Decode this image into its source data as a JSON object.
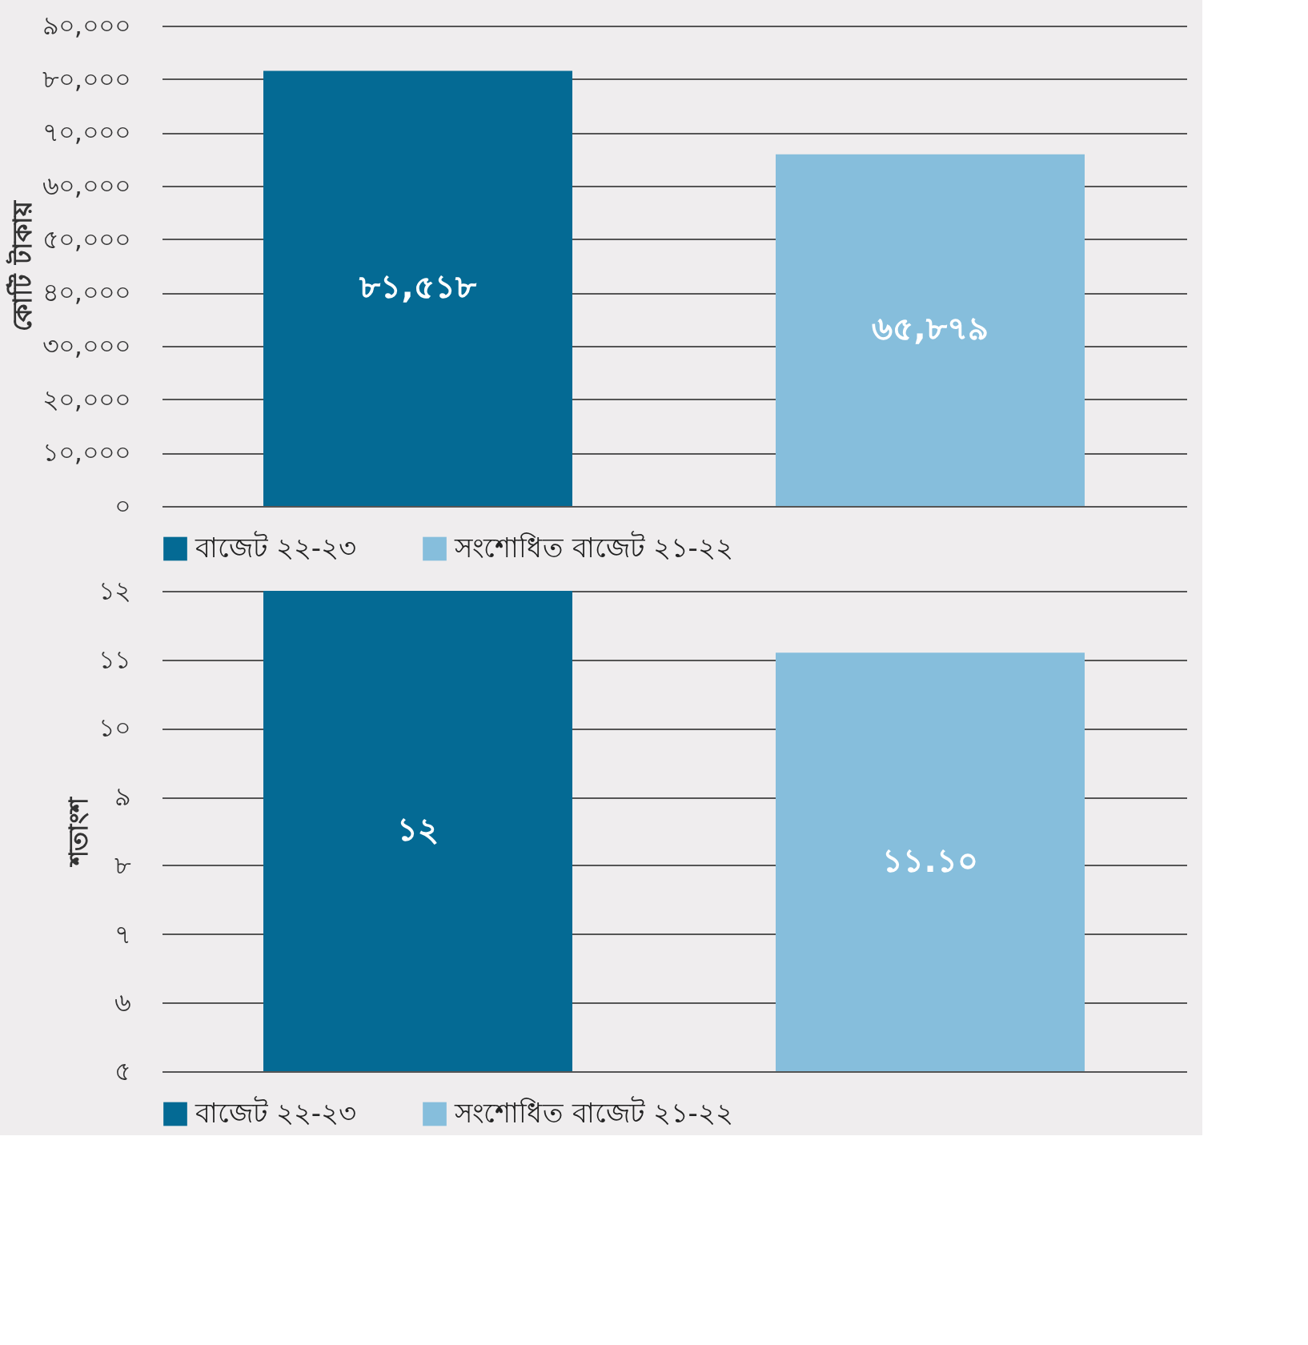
{
  "chart_data": [
    {
      "type": "bar",
      "ylabel": "কোটি টাকায়",
      "categories": [
        null,
        null
      ],
      "series": [
        {
          "name": "বাজেট ২২-২৩",
          "color": "#046a94",
          "values": [
            81518,
            null
          ],
          "value_labels": [
            "৮১,৫১৮",
            null
          ]
        },
        {
          "name": "সংশোধিত বাজেট ২১-২২",
          "color": "#86bedc",
          "values": [
            null,
            65879
          ],
          "value_labels": [
            null,
            "৬৫,৮৭৯"
          ]
        }
      ],
      "ylim": [
        0,
        90000
      ],
      "yticks": [
        {
          "value": 0,
          "label": "০"
        },
        {
          "value": 10000,
          "label": "১০,০০০"
        },
        {
          "value": 20000,
          "label": "২০,০০০"
        },
        {
          "value": 30000,
          "label": "৩০,০০০"
        },
        {
          "value": 40000,
          "label": "৪০,০০০"
        },
        {
          "value": 50000,
          "label": "৫০,০০০"
        },
        {
          "value": 60000,
          "label": "৬০,০০০"
        },
        {
          "value": 70000,
          "label": "৭০,০০০"
        },
        {
          "value": 80000,
          "label": "৮০,০০০"
        },
        {
          "value": 90000,
          "label": "৯০,০০০"
        }
      ],
      "grid": "y",
      "legend": "bottom"
    },
    {
      "type": "bar",
      "ylabel": "শতাংশ",
      "categories": [
        null,
        null
      ],
      "series": [
        {
          "name": "বাজেট ২২-২৩",
          "color": "#046a94",
          "values": [
            12,
            null
          ],
          "value_labels": [
            "১২",
            null
          ]
        },
        {
          "name": "সংশোধিত বাজেট ২১-২২",
          "color": "#86bedc",
          "values": [
            null,
            11.1
          ],
          "value_labels": [
            null,
            "১১.১০"
          ]
        }
      ],
      "ylim": [
        5,
        12
      ],
      "yticks": [
        {
          "value": 5,
          "label": "৫"
        },
        {
          "value": 6,
          "label": "৬"
        },
        {
          "value": 7,
          "label": "৭"
        },
        {
          "value": 8,
          "label": "৮"
        },
        {
          "value": 9,
          "label": "৯"
        },
        {
          "value": 10,
          "label": "১০"
        },
        {
          "value": 11,
          "label": "১১"
        },
        {
          "value": 12,
          "label": "১২"
        }
      ],
      "grid": "y",
      "legend": "bottom"
    }
  ]
}
